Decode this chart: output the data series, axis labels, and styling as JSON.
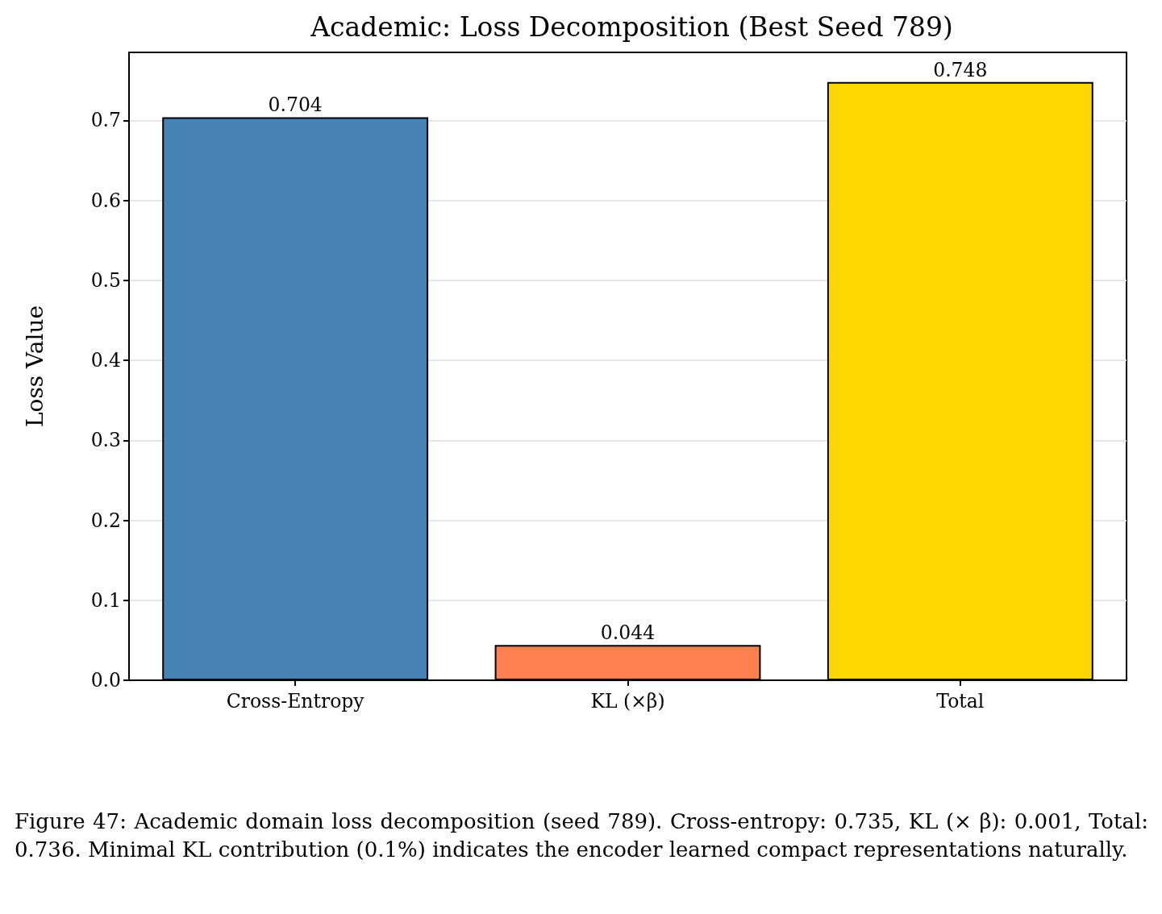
{
  "chart_data": {
    "type": "bar",
    "title": "Academic: Loss Decomposition (Best Seed 789)",
    "ylabel": "Loss Value",
    "categories": [
      "Cross-Entropy",
      "KL (×β)",
      "Total"
    ],
    "values": [
      0.704,
      0.044,
      0.748
    ],
    "colors": [
      "#4682b4",
      "#ff7f50",
      "#ffd700"
    ],
    "ylim": [
      0,
      0.785
    ],
    "yticks": [
      {
        "value": 0,
        "label": "0.0"
      },
      0.1,
      0.2,
      0.3,
      0.4,
      0.5,
      0.6,
      0.7
    ],
    "grid": "y",
    "data_labels": true,
    "annotations": [
      "Figure 47: Academic domain loss decomposition (seed 789). Cross-entropy: 0.735, KL (× β): 0.001, Total: 0.736. Minimal KL contribution (0.1%) indicates the encoder learned compact representations naturally."
    ]
  }
}
